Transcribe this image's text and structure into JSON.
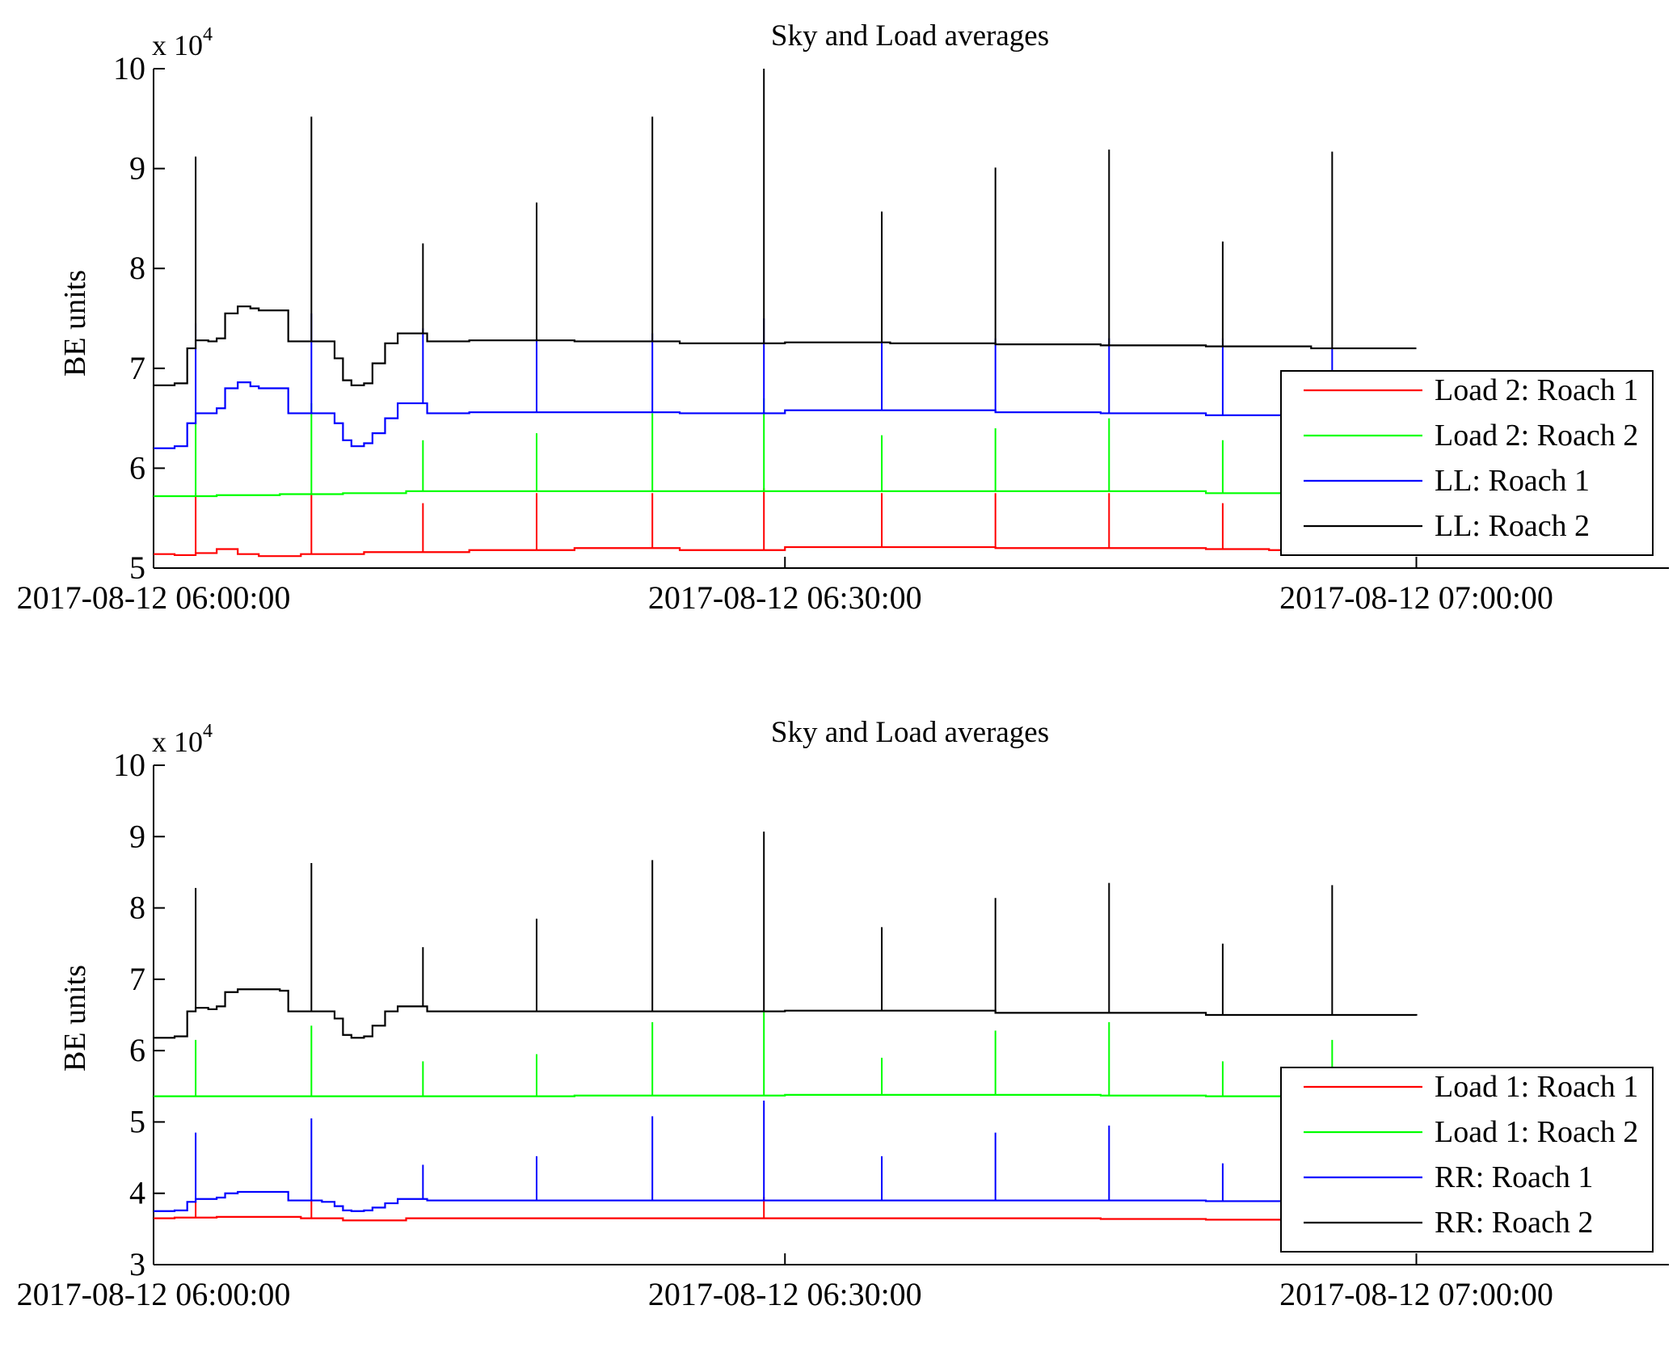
{
  "figure": {
    "background": "#ffffff"
  },
  "chart_data": [
    {
      "type": "line",
      "title": "Sky and Load averages",
      "xlabel": "",
      "ylabel": "BE units",
      "y_multiplier": "x 10",
      "y_multiplier_exponent": "4",
      "y_scale_factor": 10000,
      "xlim": [
        "2017-08-12 06:00:00",
        "2017-08-12 07:12:00"
      ],
      "ylim": [
        5,
        10
      ],
      "grid": false,
      "legend_position": "bottom-right",
      "x_ticks": [
        "2017-08-12 06:00:00",
        "2017-08-12 06:30:00",
        "2017-08-12 07:00:00"
      ],
      "x_tick_minutes": [
        0,
        30,
        60
      ],
      "y_ticks": [
        5,
        6,
        7,
        8,
        9,
        10
      ],
      "series": [
        {
          "name": "Load 2: Roach 1",
          "color": "#ff0000",
          "x_minutes": [
            0,
            1.0,
            2.0,
            3.0,
            4.0,
            5.0,
            7.0,
            8.0,
            10.0,
            15.0,
            20.0,
            25.0,
            30.0,
            35.0,
            40.0,
            45.0,
            50.0,
            53.0,
            55.0,
            56.0,
            58.0,
            60.0
          ],
          "values": [
            5.14,
            5.13,
            5.15,
            5.19,
            5.14,
            5.12,
            5.14,
            5.14,
            5.16,
            5.18,
            5.2,
            5.18,
            5.21,
            5.21,
            5.2,
            5.2,
            5.19,
            5.18,
            5.19,
            5.17,
            5.16,
            5.17
          ],
          "spikes": [
            {
              "minute": 2.0,
              "value": 5.75
            },
            {
              "minute": 7.5,
              "value": 5.75
            },
            {
              "minute": 12.8,
              "value": 5.65
            },
            {
              "minute": 18.2,
              "value": 5.75
            },
            {
              "minute": 23.7,
              "value": 5.75
            },
            {
              "minute": 29.0,
              "value": 5.8
            },
            {
              "minute": 34.6,
              "value": 5.75
            },
            {
              "minute": 40.0,
              "value": 5.75
            },
            {
              "minute": 45.4,
              "value": 5.75
            },
            {
              "minute": 50.8,
              "value": 5.65
            }
          ]
        },
        {
          "name": "Load 2: Roach 2",
          "color": "#00ff00",
          "x_minutes": [
            0,
            3.0,
            6.0,
            9.0,
            12.0,
            30.0,
            45.0,
            50.0,
            55.0,
            60.0
          ],
          "values": [
            5.72,
            5.73,
            5.74,
            5.75,
            5.77,
            5.77,
            5.77,
            5.75,
            5.74,
            5.74
          ],
          "spikes": [
            {
              "minute": 2.0,
              "value": 6.55
            },
            {
              "minute": 7.5,
              "value": 6.65
            },
            {
              "minute": 12.8,
              "value": 6.28
            },
            {
              "minute": 18.2,
              "value": 6.35
            },
            {
              "minute": 23.7,
              "value": 6.55
            },
            {
              "minute": 29.0,
              "value": 6.7
            },
            {
              "minute": 34.6,
              "value": 6.33
            },
            {
              "minute": 40.0,
              "value": 6.4
            },
            {
              "minute": 45.4,
              "value": 6.5
            },
            {
              "minute": 50.8,
              "value": 6.28
            },
            {
              "minute": 56.0,
              "value": 6.1
            }
          ]
        },
        {
          "name": "LL: Roach 1",
          "color": "#0000ff",
          "x_minutes": [
            0,
            1.0,
            1.6,
            2.0,
            2.6,
            3.0,
            3.4,
            4.0,
            4.6,
            5.0,
            6.0,
            6.2,
            6.4,
            7.0,
            8.0,
            8.6,
            9.0,
            9.4,
            10.0,
            10.4,
            11.0,
            11.6,
            12.0,
            13.0,
            15.0,
            20.0,
            25.0,
            30.0,
            35.0,
            40.0,
            45.0,
            50.0,
            55.0,
            60.0
          ],
          "values": [
            6.2,
            6.22,
            6.45,
            6.55,
            6.55,
            6.6,
            6.8,
            6.86,
            6.82,
            6.8,
            6.8,
            6.8,
            6.55,
            6.55,
            6.55,
            6.45,
            6.28,
            6.22,
            6.25,
            6.35,
            6.5,
            6.65,
            6.65,
            6.55,
            6.56,
            6.56,
            6.55,
            6.58,
            6.58,
            6.56,
            6.55,
            6.53,
            6.52,
            6.52
          ],
          "spikes": [
            {
              "minute": 2.0,
              "value": 7.45
            },
            {
              "minute": 7.5,
              "value": 7.55
            },
            {
              "minute": 12.8,
              "value": 7.4
            },
            {
              "minute": 18.2,
              "value": 7.3
            },
            {
              "minute": 23.7,
              "value": 7.35
            },
            {
              "minute": 29.0,
              "value": 7.5
            },
            {
              "minute": 34.6,
              "value": 7.3
            },
            {
              "minute": 40.0,
              "value": 7.3
            },
            {
              "minute": 45.4,
              "value": 7.3
            },
            {
              "minute": 50.8,
              "value": 7.3
            },
            {
              "minute": 56.0,
              "value": 7.2
            }
          ]
        },
        {
          "name": "LL: Roach 2",
          "color": "#000000",
          "x_minutes": [
            0,
            1.0,
            1.6,
            2.0,
            2.6,
            3.0,
            3.4,
            4.0,
            4.6,
            5.0,
            6.0,
            6.2,
            6.4,
            7.0,
            8.0,
            8.6,
            9.0,
            9.4,
            10.0,
            10.4,
            11.0,
            11.6,
            12.0,
            13.0,
            15.0,
            20.0,
            25.0,
            30.0,
            35.0,
            40.0,
            45.0,
            50.0,
            55.0,
            60.0
          ],
          "values": [
            6.83,
            6.85,
            7.2,
            7.28,
            7.27,
            7.3,
            7.55,
            7.62,
            7.6,
            7.58,
            7.58,
            7.58,
            7.27,
            7.27,
            7.27,
            7.1,
            6.88,
            6.83,
            6.85,
            7.05,
            7.25,
            7.35,
            7.35,
            7.27,
            7.28,
            7.27,
            7.25,
            7.26,
            7.25,
            7.24,
            7.23,
            7.22,
            7.2,
            7.2
          ],
          "spikes": [
            {
              "minute": 2.0,
              "value": 9.12
            },
            {
              "minute": 7.5,
              "value": 9.52
            },
            {
              "minute": 12.8,
              "value": 8.25
            },
            {
              "minute": 18.2,
              "value": 8.66
            },
            {
              "minute": 23.7,
              "value": 9.52
            },
            {
              "minute": 29.0,
              "value": 10.0
            },
            {
              "minute": 34.6,
              "value": 8.57
            },
            {
              "minute": 40.0,
              "value": 9.01
            },
            {
              "minute": 45.4,
              "value": 9.19
            },
            {
              "minute": 50.8,
              "value": 8.27
            },
            {
              "minute": 56.0,
              "value": 9.17
            }
          ]
        }
      ]
    },
    {
      "type": "line",
      "title": "Sky and Load averages",
      "xlabel": "",
      "ylabel": "BE units",
      "y_multiplier": "x 10",
      "y_multiplier_exponent": "4",
      "y_scale_factor": 10000,
      "xlim": [
        "2017-08-12 06:00:00",
        "2017-08-12 07:12:00"
      ],
      "ylim": [
        3,
        10
      ],
      "grid": false,
      "legend_position": "bottom-right",
      "x_ticks": [
        "2017-08-12 06:00:00",
        "2017-08-12 06:30:00",
        "2017-08-12 07:00:00"
      ],
      "x_tick_minutes": [
        0,
        30,
        60
      ],
      "y_ticks": [
        3,
        4,
        5,
        6,
        7,
        8,
        9,
        10
      ],
      "series": [
        {
          "name": "Load 1: Roach 1",
          "color": "#ff0000",
          "x_minutes": [
            0,
            1.0,
            2.0,
            3.0,
            5.0,
            6.0,
            7.0,
            8.0,
            9.0,
            10.0,
            12.0,
            15.0,
            20.0,
            25.0,
            30.0,
            35.0,
            40.0,
            45.0,
            50.0,
            55.0,
            60.0
          ],
          "values": [
            3.65,
            3.66,
            3.66,
            3.67,
            3.67,
            3.67,
            3.65,
            3.65,
            3.62,
            3.62,
            3.65,
            3.65,
            3.65,
            3.65,
            3.65,
            3.65,
            3.65,
            3.64,
            3.63,
            3.63,
            3.63
          ],
          "spikes": [
            {
              "minute": 2.0,
              "value": 3.9
            },
            {
              "minute": 7.5,
              "value": 3.9
            },
            {
              "minute": 29.0,
              "value": 3.95
            }
          ]
        },
        {
          "name": "Load 1: Roach 2",
          "color": "#00ff00",
          "x_minutes": [
            0,
            10.0,
            20.0,
            30.0,
            40.0,
            45.0,
            50.0,
            55.0,
            60.0
          ],
          "values": [
            5.36,
            5.36,
            5.37,
            5.38,
            5.38,
            5.37,
            5.36,
            5.36,
            5.36
          ],
          "spikes": [
            {
              "minute": 2.0,
              "value": 6.15
            },
            {
              "minute": 7.5,
              "value": 6.35
            },
            {
              "minute": 12.8,
              "value": 5.85
            },
            {
              "minute": 18.2,
              "value": 5.95
            },
            {
              "minute": 23.7,
              "value": 6.4
            },
            {
              "minute": 29.0,
              "value": 6.55
            },
            {
              "minute": 34.6,
              "value": 5.9
            },
            {
              "minute": 40.0,
              "value": 6.28
            },
            {
              "minute": 45.4,
              "value": 6.4
            },
            {
              "minute": 50.8,
              "value": 5.85
            },
            {
              "minute": 56.0,
              "value": 6.15
            }
          ]
        },
        {
          "name": "RR: Roach 1",
          "color": "#0000ff",
          "x_minutes": [
            0,
            1.0,
            1.6,
            2.0,
            2.6,
            3.0,
            3.4,
            4.0,
            5.0,
            6.0,
            6.2,
            6.4,
            7.0,
            8.0,
            8.6,
            9.0,
            9.4,
            10.0,
            10.4,
            11.0,
            11.6,
            12.0,
            13.0,
            20.0,
            30.0,
            40.0,
            50.0,
            60.0
          ],
          "values": [
            3.75,
            3.76,
            3.88,
            3.92,
            3.92,
            3.94,
            4.0,
            4.02,
            4.02,
            4.02,
            4.02,
            3.9,
            3.9,
            3.88,
            3.82,
            3.76,
            3.75,
            3.76,
            3.8,
            3.86,
            3.92,
            3.92,
            3.9,
            3.9,
            3.9,
            3.9,
            3.89,
            3.88
          ],
          "spikes": [
            {
              "minute": 2.0,
              "value": 4.85
            },
            {
              "minute": 7.5,
              "value": 5.05
            },
            {
              "minute": 12.8,
              "value": 4.4
            },
            {
              "minute": 18.2,
              "value": 4.52
            },
            {
              "minute": 23.7,
              "value": 5.08
            },
            {
              "minute": 29.0,
              "value": 5.3
            },
            {
              "minute": 34.6,
              "value": 4.52
            },
            {
              "minute": 40.0,
              "value": 4.85
            },
            {
              "minute": 45.4,
              "value": 4.95
            },
            {
              "minute": 50.8,
              "value": 4.42
            }
          ]
        },
        {
          "name": "RR: Roach 2",
          "color": "#000000",
          "x_minutes": [
            0,
            1.0,
            1.6,
            2.0,
            2.6,
            3.0,
            3.4,
            4.0,
            5.0,
            6.0,
            6.2,
            6.4,
            7.0,
            8.0,
            8.6,
            9.0,
            9.4,
            10.0,
            10.4,
            11.0,
            11.6,
            12.0,
            13.0,
            20.0,
            30.0,
            40.0,
            50.0,
            60.0
          ],
          "values": [
            6.18,
            6.2,
            6.55,
            6.6,
            6.58,
            6.62,
            6.82,
            6.86,
            6.86,
            6.84,
            6.84,
            6.55,
            6.55,
            6.55,
            6.45,
            6.22,
            6.18,
            6.2,
            6.35,
            6.55,
            6.62,
            6.62,
            6.55,
            6.55,
            6.56,
            6.53,
            6.5,
            6.49
          ],
          "spikes": [
            {
              "minute": 2.0,
              "value": 8.28
            },
            {
              "minute": 7.5,
              "value": 8.63
            },
            {
              "minute": 12.8,
              "value": 7.45
            },
            {
              "minute": 18.2,
              "value": 7.85
            },
            {
              "minute": 23.7,
              "value": 8.67
            },
            {
              "minute": 29.0,
              "value": 9.07
            },
            {
              "minute": 34.6,
              "value": 7.73
            },
            {
              "minute": 40.0,
              "value": 8.14
            },
            {
              "minute": 45.4,
              "value": 8.35
            },
            {
              "minute": 50.8,
              "value": 7.5
            },
            {
              "minute": 56.0,
              "value": 8.32
            }
          ]
        }
      ]
    }
  ]
}
